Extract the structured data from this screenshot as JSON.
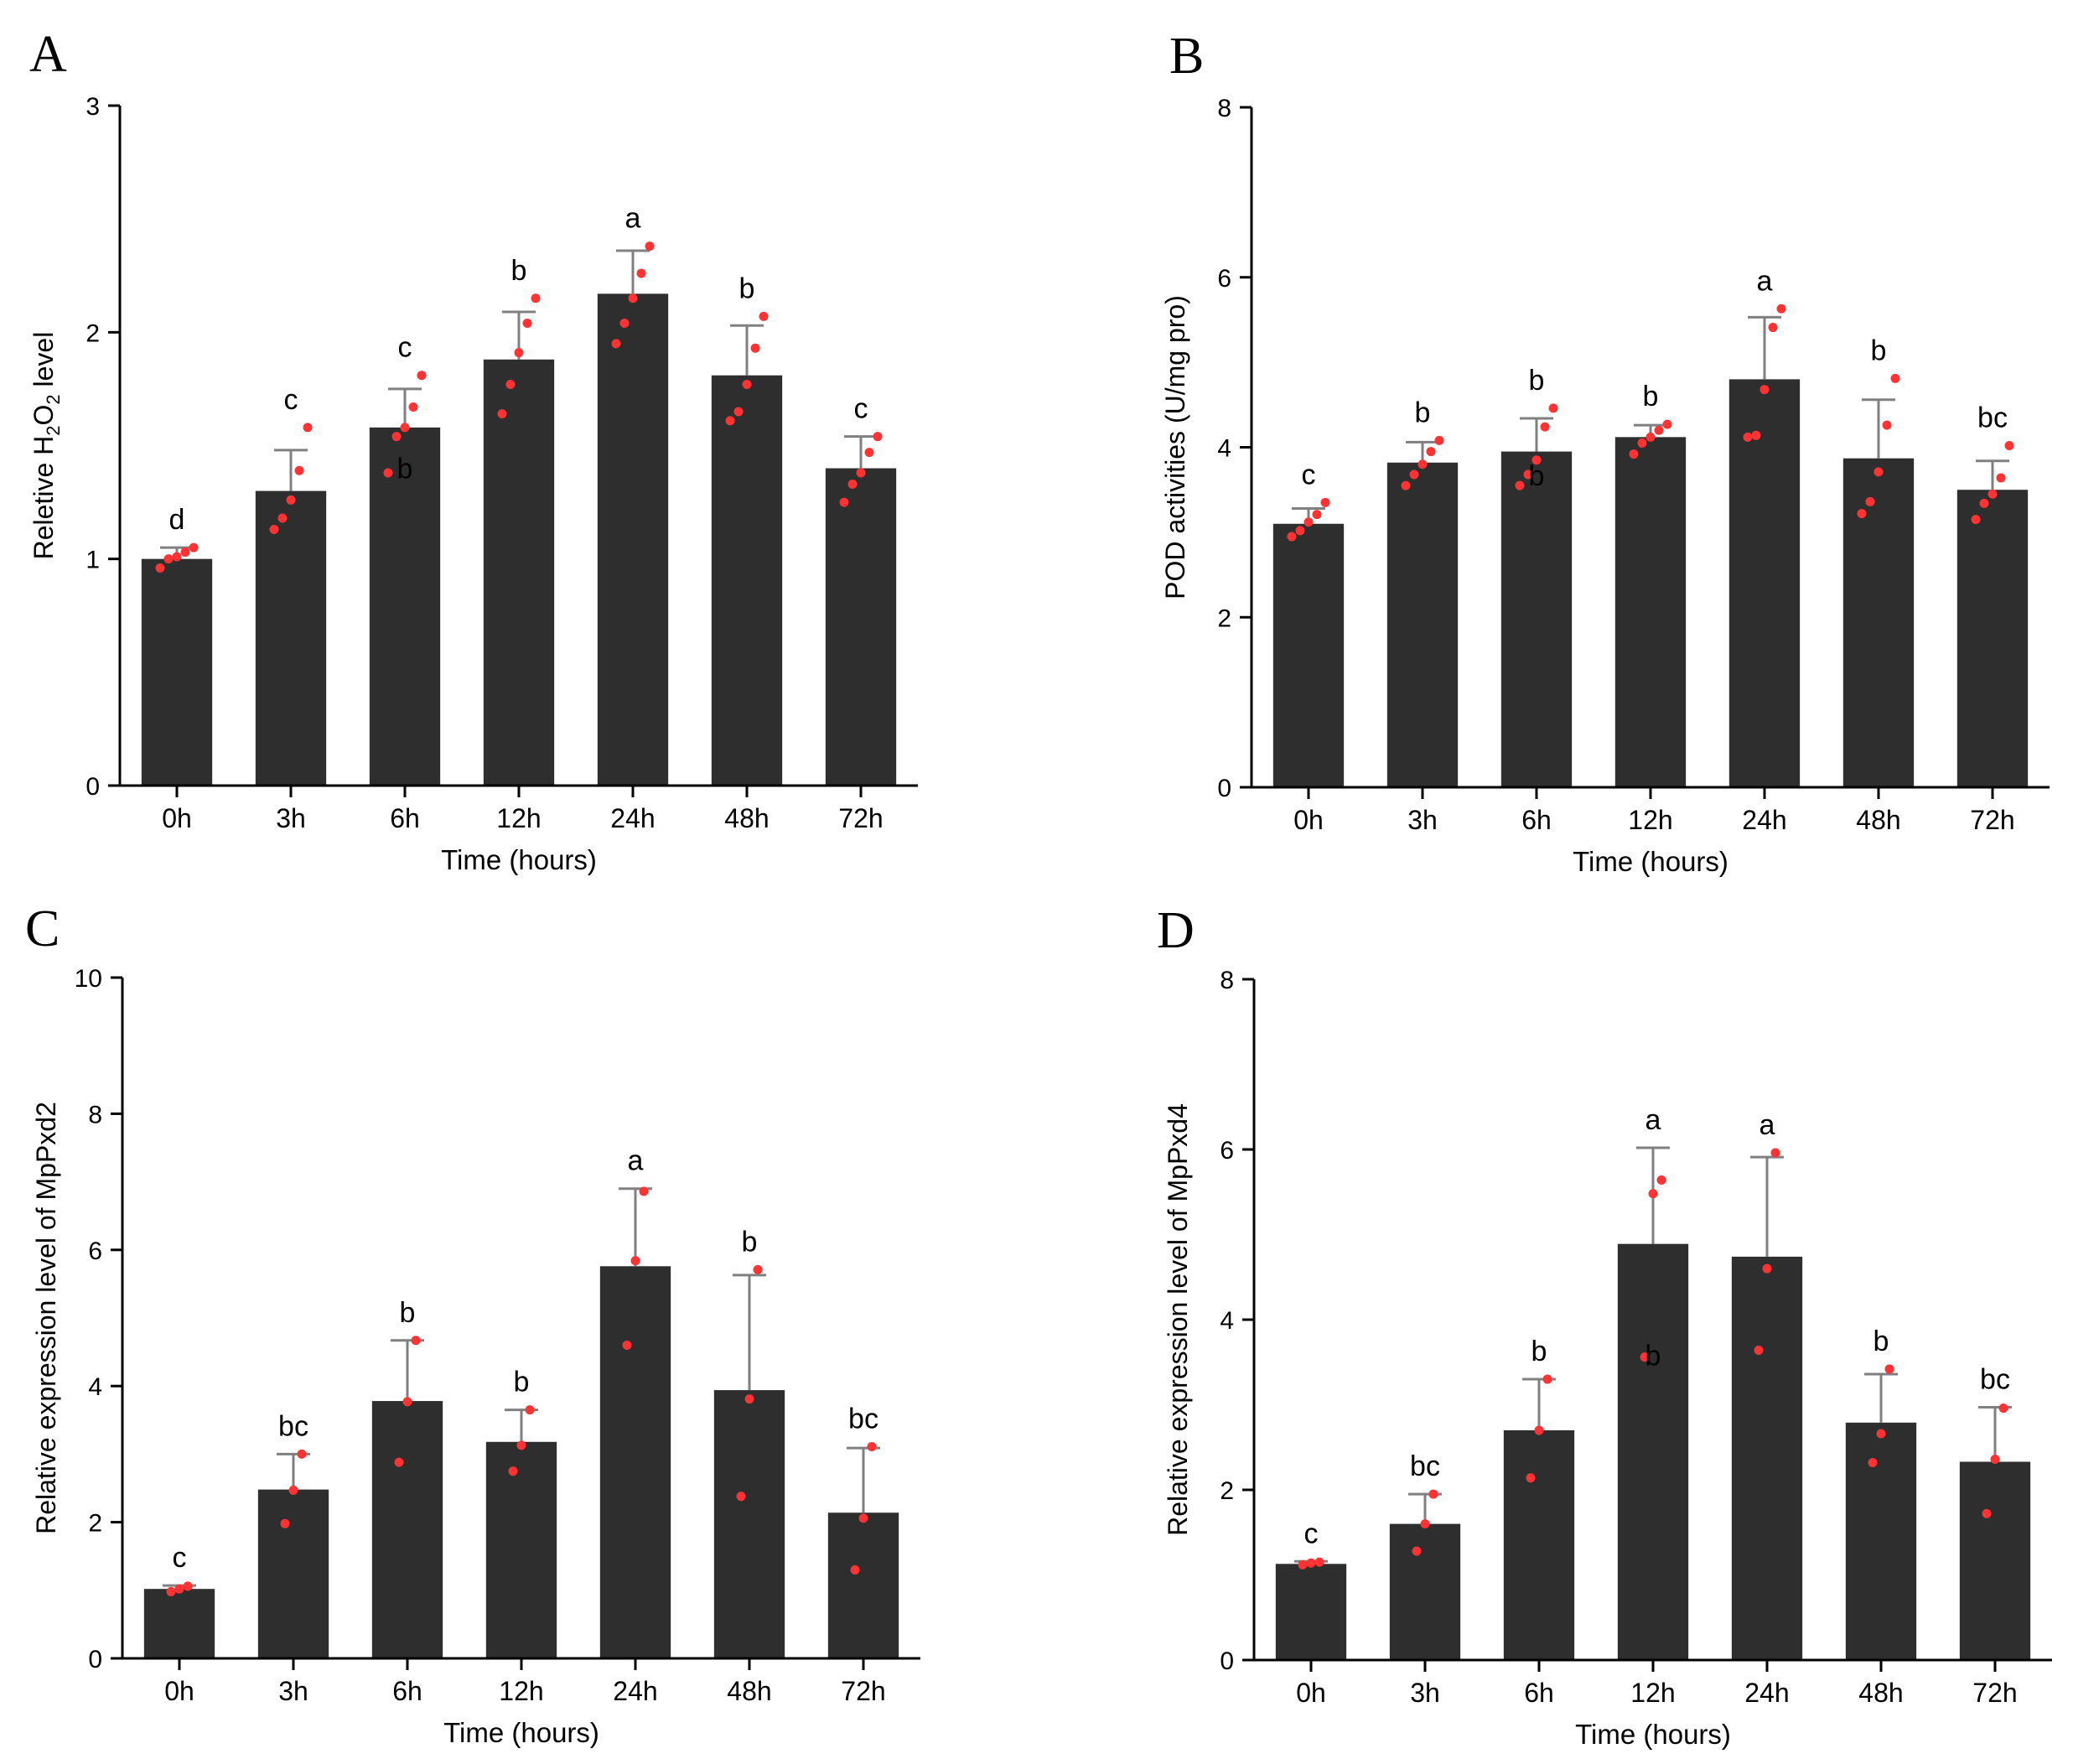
{
  "colors": {
    "bar": "#2e2e2e",
    "axis": "#000000",
    "error_bar": "#808080",
    "point": "#ff3333",
    "text": "#000000"
  },
  "chart_data": [
    {
      "panel": "A",
      "type": "bar",
      "xlabel": "Time (hours)",
      "ylabel_parts": [
        "Reletive H",
        "2",
        "O",
        "2",
        " level"
      ],
      "categories": [
        "0h",
        "3h",
        "6h",
        "12h",
        "24h",
        "48h",
        "72h"
      ],
      "values": [
        1.0,
        1.3,
        1.58,
        1.88,
        2.17,
        1.81,
        1.4
      ],
      "error_upper": [
        1.05,
        1.48,
        1.75,
        2.09,
        2.36,
        2.03,
        1.54
      ],
      "points": [
        [
          0.96,
          1.0,
          1.01,
          1.03,
          1.05
        ],
        [
          1.13,
          1.18,
          1.26,
          1.39,
          1.58
        ],
        [
          1.38,
          1.54,
          1.58,
          1.67,
          1.81
        ],
        [
          1.64,
          1.77,
          1.91,
          2.04,
          2.15
        ],
        [
          1.95,
          2.04,
          2.15,
          2.26,
          2.38
        ],
        [
          1.61,
          1.65,
          1.77,
          1.93,
          2.07
        ],
        [
          1.25,
          1.33,
          1.38,
          1.47,
          1.54
        ]
      ],
      "letters": [
        "d",
        "c",
        "c",
        "b",
        "a",
        "b",
        "c"
      ],
      "extra_labels": [
        {
          "category_index": 2,
          "y": 1.4,
          "text": "b"
        }
      ],
      "ylim": [
        0,
        3
      ],
      "yticks": [
        0,
        1,
        2,
        3
      ],
      "grid": false,
      "legend": "none"
    },
    {
      "panel": "B",
      "type": "bar",
      "xlabel": "Time (hours)",
      "ylabel_parts": [
        "POD activities (U/mg pro)"
      ],
      "categories": [
        "0h",
        "3h",
        "6h",
        "12h",
        "24h",
        "48h",
        "72h"
      ],
      "values": [
        3.1,
        3.82,
        3.95,
        4.12,
        4.8,
        3.87,
        3.5
      ],
      "error_upper": [
        3.28,
        4.06,
        4.34,
        4.26,
        5.53,
        4.56,
        3.84
      ],
      "points": [
        [
          2.95,
          3.02,
          3.12,
          3.21,
          3.35
        ],
        [
          3.55,
          3.68,
          3.8,
          3.95,
          4.08
        ],
        [
          3.55,
          3.68,
          3.85,
          4.24,
          4.46
        ],
        [
          3.92,
          4.05,
          4.12,
          4.2,
          4.27
        ],
        [
          4.12,
          4.14,
          4.68,
          5.41,
          5.63
        ],
        [
          3.22,
          3.36,
          3.71,
          4.26,
          4.81
        ],
        [
          3.15,
          3.34,
          3.45,
          3.64,
          4.02
        ]
      ],
      "letters": [
        "c",
        "b",
        "b",
        "b",
        "a",
        "b",
        "bc"
      ],
      "extra_labels": [
        {
          "category_index": 2,
          "y": 3.67,
          "text": "b"
        }
      ],
      "ylim": [
        0,
        8
      ],
      "yticks": [
        0,
        2,
        4,
        6,
        8
      ],
      "grid": false,
      "legend": "none"
    },
    {
      "panel": "C",
      "type": "bar",
      "xlabel": "Time (hours)",
      "ylabel_parts": [
        "Relative expression level of MpPxd2"
      ],
      "categories": [
        "0h",
        "3h",
        "6h",
        "12h",
        "24h",
        "48h",
        "72h"
      ],
      "values": [
        1.02,
        2.48,
        3.78,
        3.18,
        5.76,
        3.94,
        2.14
      ],
      "error_upper": [
        1.07,
        3.0,
        4.67,
        3.65,
        6.9,
        5.63,
        3.09
      ],
      "points": [
        [
          0.98,
          1.02,
          1.06
        ],
        [
          1.98,
          2.47,
          3.0
        ],
        [
          2.88,
          3.77,
          4.67
        ],
        [
          2.75,
          3.13,
          3.65
        ],
        [
          4.6,
          5.84,
          6.86
        ],
        [
          2.38,
          3.81,
          5.71
        ],
        [
          1.3,
          2.06,
          3.11
        ]
      ],
      "letters": [
        "c",
        "bc",
        "b",
        "b",
        "a",
        "b",
        "bc"
      ],
      "extra_labels": [],
      "ylim": [
        0,
        10
      ],
      "yticks": [
        0,
        2,
        4,
        6,
        8,
        10
      ],
      "grid": false,
      "legend": "none"
    },
    {
      "panel": "D",
      "type": "bar",
      "xlabel": "Time (hours)",
      "ylabel_parts": [
        "Relative expression level of MpPxd4"
      ],
      "categories": [
        "0h",
        "3h",
        "6h",
        "12h",
        "24h",
        "48h",
        "72h"
      ],
      "values": [
        1.13,
        1.6,
        2.7,
        4.89,
        4.74,
        2.79,
        2.33
      ],
      "error_upper": [
        1.16,
        1.95,
        3.3,
        6.02,
        5.91,
        3.36,
        2.97
      ],
      "points": [
        [
          1.12,
          1.14,
          1.15
        ],
        [
          1.28,
          1.6,
          1.95
        ],
        [
          2.14,
          2.7,
          3.3
        ],
        [
          3.56,
          5.48,
          5.64
        ],
        [
          3.64,
          4.6,
          5.96
        ],
        [
          2.32,
          2.66,
          3.42
        ],
        [
          1.72,
          2.36,
          2.96
        ]
      ],
      "letters": [
        "c",
        "bc",
        "b",
        "a",
        "a",
        "b",
        "bc"
      ],
      "extra_labels": [
        {
          "category_index": 3,
          "y": 3.58,
          "text": "b"
        }
      ],
      "ylim": [
        0,
        8
      ],
      "yticks": [
        0,
        2,
        4,
        6,
        8
      ],
      "grid": false,
      "legend": "none"
    }
  ]
}
